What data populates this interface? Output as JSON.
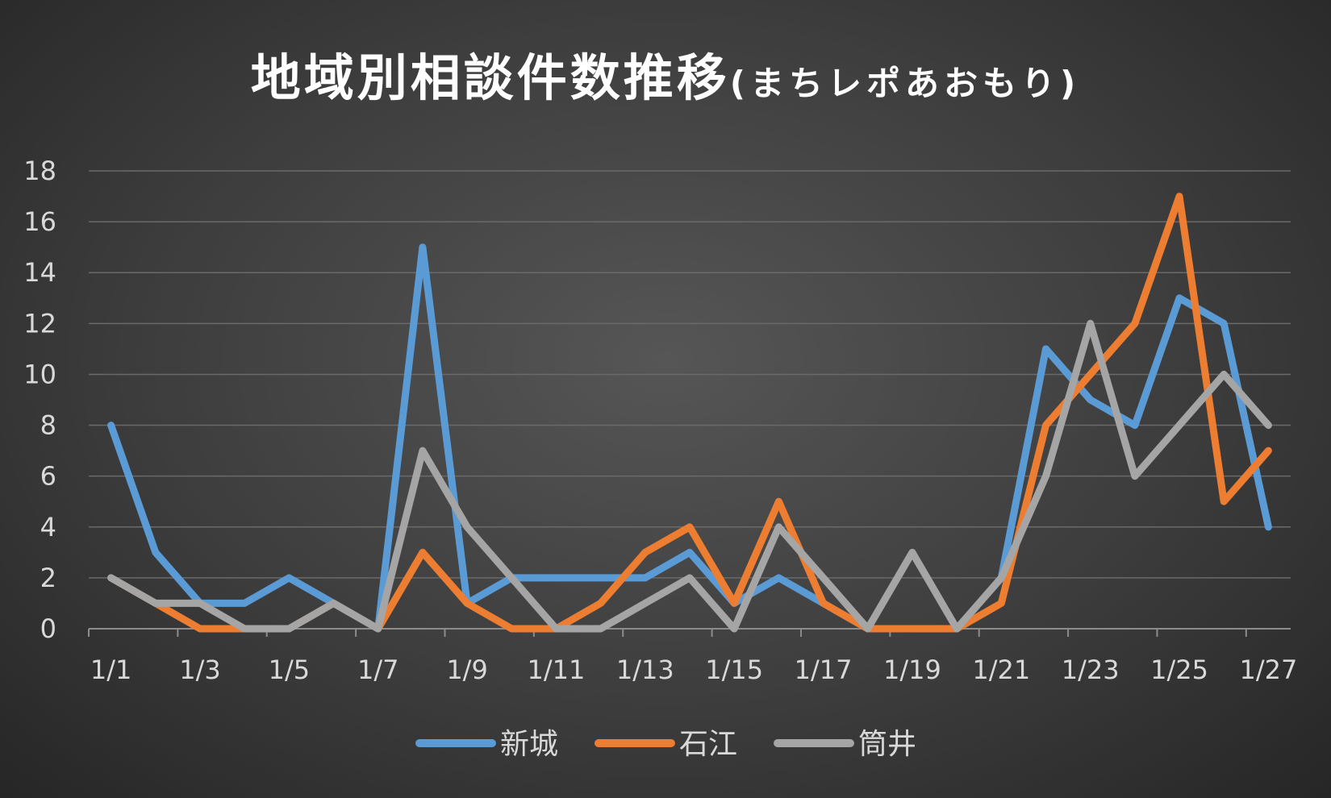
{
  "chart_data": {
    "type": "line",
    "title": "地域別相談件数推移",
    "title_suffix": "(まちレポあおもり)",
    "xlabel": "",
    "ylabel": "",
    "ylim": [
      0,
      18
    ],
    "y_ticks": [
      0,
      2,
      4,
      6,
      8,
      10,
      12,
      14,
      16,
      18
    ],
    "grid": true,
    "legend_position": "bottom",
    "categories": [
      "1/1",
      "1/2",
      "1/3",
      "1/4",
      "1/5",
      "1/6",
      "1/7",
      "1/8",
      "1/9",
      "1/10",
      "1/11",
      "1/12",
      "1/13",
      "1/14",
      "1/15",
      "1/16",
      "1/17",
      "1/18",
      "1/19",
      "1/20",
      "1/21",
      "1/22",
      "1/23",
      "1/24",
      "1/25",
      "1/26",
      "1/27"
    ],
    "x_tick_labels": [
      "1/1",
      "1/3",
      "1/5",
      "1/7",
      "1/9",
      "1/11",
      "1/13",
      "1/15",
      "1/17",
      "1/19",
      "1/21",
      "1/23",
      "1/25",
      "1/27"
    ],
    "series": [
      {
        "name": "新城",
        "color": "#5b9bd5",
        "values": [
          8,
          3,
          1,
          1,
          2,
          1,
          0,
          15,
          1,
          2,
          2,
          2,
          2,
          3,
          1,
          2,
          1,
          0,
          0,
          0,
          2,
          11,
          9,
          8,
          13,
          12,
          4
        ]
      },
      {
        "name": "石江",
        "color": "#ed7d31",
        "values": [
          2,
          1,
          0,
          0,
          0,
          1,
          0,
          3,
          1,
          0,
          0,
          1,
          3,
          4,
          1,
          5,
          1,
          0,
          0,
          0,
          1,
          8,
          10,
          12,
          17,
          5,
          7
        ]
      },
      {
        "name": "筒井",
        "color": "#a5a5a5",
        "values": [
          2,
          1,
          1,
          0,
          0,
          1,
          0,
          7,
          4,
          2,
          0,
          0,
          1,
          2,
          0,
          4,
          2,
          0,
          3,
          0,
          2,
          6,
          12,
          6,
          8,
          10,
          8
        ]
      }
    ]
  }
}
